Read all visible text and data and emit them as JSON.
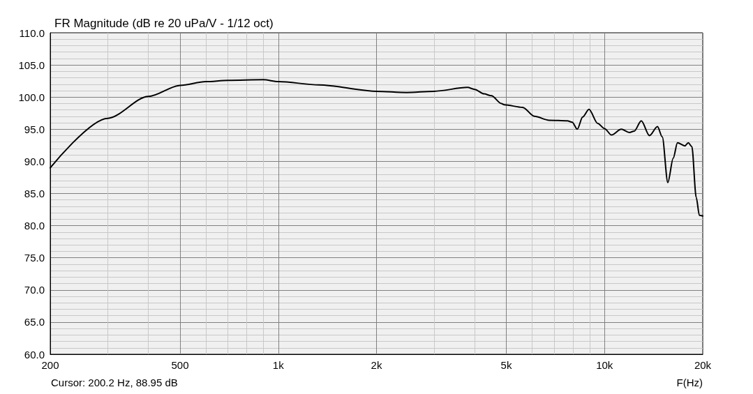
{
  "chart_data": {
    "type": "line",
    "title": "FR Magnitude (dB re 20 uPa/V - 1/12 oct)",
    "xlabel": "F(Hz)",
    "annotations": [
      "Cursor: 200.2 Hz, 88.95 dB"
    ],
    "log": "x",
    "grid": true,
    "marker": "none",
    "line_style": "solid",
    "xlim": [
      200,
      20000
    ],
    "xticks": [
      200,
      {
        "value": 300,
        "label": null
      },
      {
        "value": 400,
        "label": null
      },
      500,
      {
        "value": 600,
        "label": null
      },
      {
        "value": 700,
        "label": null
      },
      {
        "value": 800,
        "label": null
      },
      {
        "value": 900,
        "label": null
      },
      {
        "value": 1000,
        "label": "1k"
      },
      {
        "value": 2000,
        "label": "2k"
      },
      {
        "value": 3000,
        "label": null
      },
      {
        "value": 4000,
        "label": null
      },
      {
        "value": 5000,
        "label": "5k"
      },
      {
        "value": 6000,
        "label": null
      },
      {
        "value": 7000,
        "label": null
      },
      {
        "value": 8000,
        "label": null
      },
      {
        "value": 9000,
        "label": null
      },
      {
        "value": 10000,
        "label": "10k"
      },
      {
        "value": 20000,
        "label": "20k"
      }
    ],
    "ylim": [
      60,
      110
    ],
    "yticks": [
      {
        "value": 60,
        "label": "60.0"
      },
      {
        "value": 65,
        "label": "65.0"
      },
      {
        "value": 70,
        "label": "70.0"
      },
      {
        "value": 75,
        "label": "75.0"
      },
      {
        "value": 80,
        "label": "80.0"
      },
      {
        "value": 85,
        "label": "85.0"
      },
      {
        "value": 90,
        "label": "90.0"
      },
      {
        "value": 95,
        "label": "95.0"
      },
      {
        "value": 100,
        "label": "100.0"
      },
      {
        "value": 105,
        "label": "105.0"
      },
      {
        "value": 110,
        "label": "110.0"
      }
    ],
    "series": [
      {
        "color": "#000000",
        "x": [
          200,
          300,
          400,
          500,
          600,
          700,
          900,
          1000,
          1333,
          2000,
          2470,
          3000,
          3800,
          4000,
          4270,
          4500,
          4830,
          4930,
          5610,
          6100,
          6760,
          7690,
          7960,
          8250,
          8570,
          8960,
          9530,
          10000,
          10500,
          11250,
          11920,
          12330,
          12960,
          13730,
          14530,
          15030,
          15630,
          16240,
          16730,
          17630,
          18060,
          18520,
          19100,
          19530,
          20000
        ],
        "values": [
          89.0,
          96.7,
          100.1,
          101.8,
          102.4,
          102.6,
          102.7,
          102.4,
          101.9,
          100.9,
          100.7,
          100.9,
          101.5,
          101.2,
          100.5,
          100.2,
          99.0,
          98.8,
          98.4,
          97.0,
          96.4,
          96.3,
          96.1,
          95.0,
          96.9,
          98.1,
          95.9,
          95.1,
          94.1,
          95.0,
          94.5,
          94.7,
          96.3,
          94.0,
          95.4,
          93.8,
          86.7,
          90.5,
          92.9,
          92.4,
          92.9,
          92.3,
          84.4,
          81.6,
          81.5
        ]
      }
    ]
  }
}
